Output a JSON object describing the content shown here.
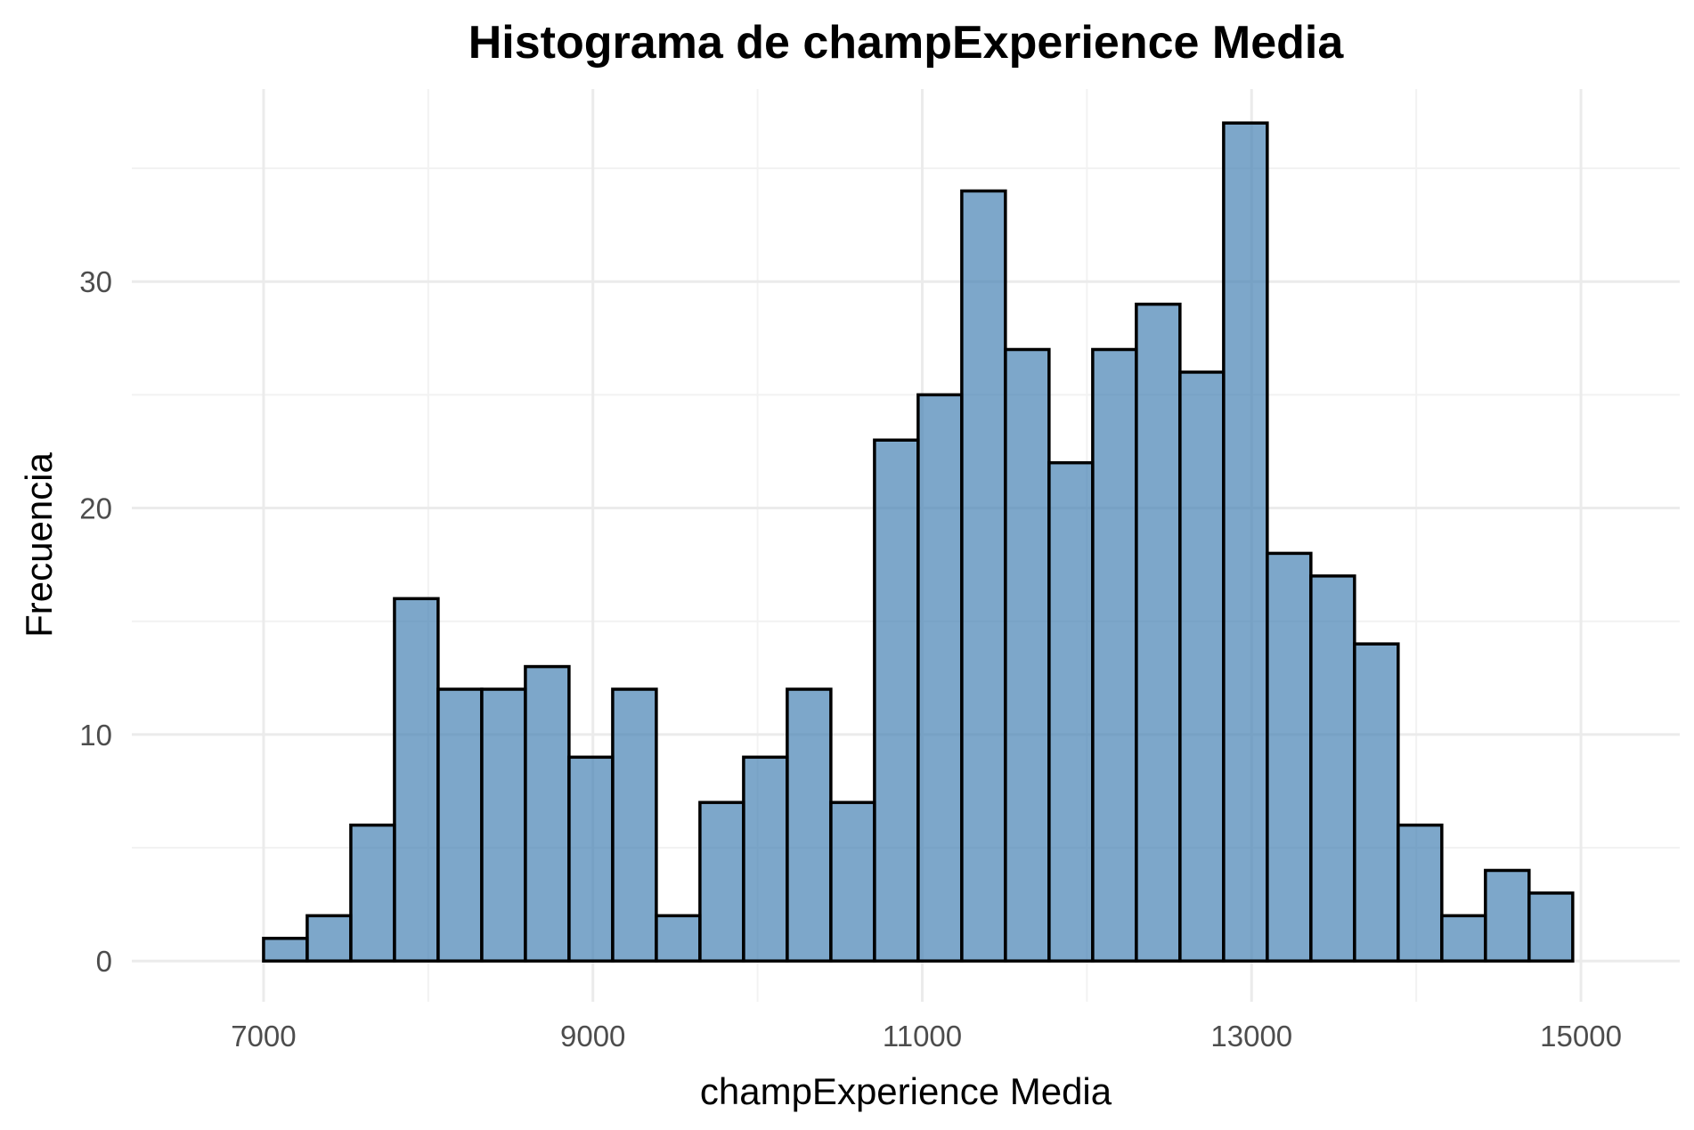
{
  "chart_data": {
    "type": "bar",
    "title": "Histograma de champExperience Media",
    "xlabel": "champExperience Media",
    "ylabel": "Frecuencia",
    "x_ticks": [
      7000,
      9000,
      11000,
      13000,
      15000
    ],
    "y_ticks": [
      0,
      10,
      20,
      30
    ],
    "xlim": [
      6200,
      15600
    ],
    "ylim": [
      -1.8,
      38.5
    ],
    "bin_start": 7000,
    "bin_width": 265,
    "values": [
      1,
      2,
      6,
      16,
      12,
      12,
      13,
      9,
      12,
      2,
      7,
      9,
      12,
      7,
      23,
      25,
      34,
      27,
      22,
      27,
      29,
      26,
      37,
      18,
      17,
      14,
      6,
      2,
      4,
      3
    ],
    "grid": true,
    "legend": "none",
    "colors": {
      "fill": "#4682b4",
      "fill_opacity": 0.7,
      "stroke": "#000000",
      "grid_major": "#ebebeb",
      "grid_minor": "#f2f2f2",
      "tick_text": "#4d4d4d"
    }
  }
}
